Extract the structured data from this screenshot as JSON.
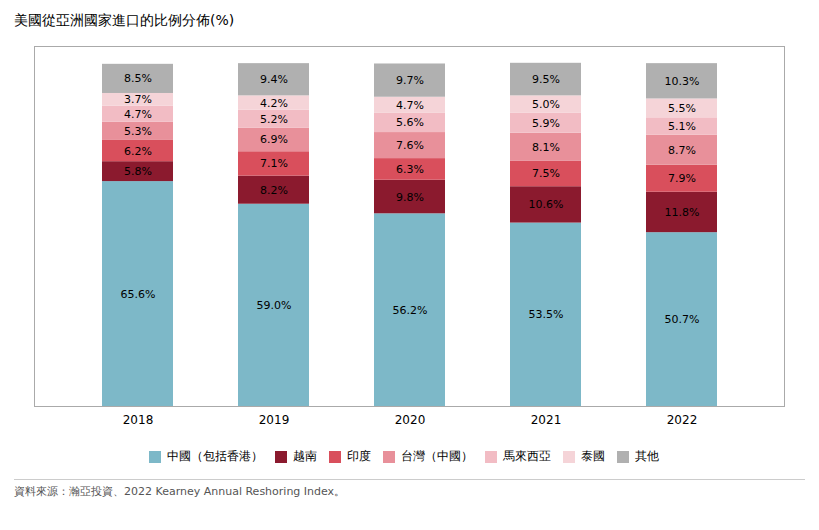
{
  "chart_data": {
    "type": "bar",
    "stacked": true,
    "title": "美國從亞洲國家進口的比例分佈(%)",
    "source": "資料來源：瀚亞投資、2022 Kearney Annual Reshoring Index。",
    "categories": [
      "2018",
      "2019",
      "2020",
      "2021",
      "2022"
    ],
    "series": [
      {
        "name": "中國（包括香港）",
        "color": "#7db8c8",
        "values": [
          65.6,
          59.0,
          56.2,
          53.5,
          50.7
        ],
        "value_labels": [
          "65.6%",
          "59.0%",
          "56.2%",
          "53.5%",
          "50.7%"
        ]
      },
      {
        "name": "越南",
        "color": "#8b1a2e",
        "values": [
          5.8,
          8.2,
          9.8,
          10.6,
          11.8
        ],
        "value_labels": [
          "5.8%",
          "8.2%",
          "9.8%",
          "10.6%",
          "11.8%"
        ]
      },
      {
        "name": "印度",
        "color": "#d94f5c",
        "values": [
          6.2,
          7.1,
          6.3,
          7.5,
          7.9
        ],
        "value_labels": [
          "6.2%",
          "7.1%",
          "6.3%",
          "7.5%",
          "7.9%"
        ]
      },
      {
        "name": "台灣（中國）",
        "color": "#e8909a",
        "values": [
          5.3,
          6.9,
          7.6,
          8.1,
          8.7
        ],
        "value_labels": [
          "5.3%",
          "6.9%",
          "7.6%",
          "8.1%",
          "8.7%"
        ]
      },
      {
        "name": "馬來西亞",
        "color": "#f2bcc4",
        "values": [
          4.7,
          5.2,
          5.6,
          5.9,
          5.1
        ],
        "value_labels": [
          "4.7%",
          "5.2%",
          "5.6%",
          "5.9%",
          "5.1%"
        ]
      },
      {
        "name": "泰國",
        "color": "#f5d4d8",
        "values": [
          3.7,
          4.2,
          4.7,
          5.0,
          5.5
        ],
        "value_labels": [
          "3.7%",
          "4.2%",
          "4.7%",
          "5.0%",
          "5.5%"
        ]
      },
      {
        "name": "其他",
        "color": "#b0b0b0",
        "values": [
          8.5,
          9.4,
          9.7,
          9.5,
          10.3
        ],
        "value_labels": [
          "8.5%",
          "9.4%",
          "9.7%",
          "9.5%",
          "10.3%"
        ]
      }
    ],
    "ylim": [
      0,
      105
    ],
    "grid": false,
    "legend": "bottom",
    "data_labels": true,
    "tick_labels": "x"
  }
}
